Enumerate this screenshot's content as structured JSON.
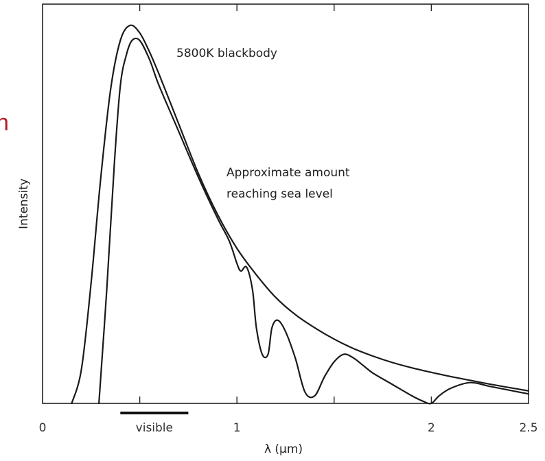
{
  "edge_fragment": "n",
  "chart_data": {
    "type": "line",
    "title": "",
    "xlabel": "λ (μm)",
    "ylabel": "Intensity",
    "xlim": [
      0,
      2.5
    ],
    "ylim": [
      0,
      1
    ],
    "x_ticks": [
      0,
      1,
      2,
      2.5
    ],
    "x_tick_labels": [
      "0",
      "1",
      "2",
      "2.5"
    ],
    "grid": false,
    "annotations": [
      {
        "text": "5800K blackbody",
        "series": "blackbody"
      },
      {
        "text": "Approximate amount",
        "series": "sea_level"
      },
      {
        "text": "reaching sea level",
        "series": "sea_level"
      }
    ],
    "band": {
      "label": "visible",
      "range": [
        0.4,
        0.75
      ]
    },
    "series": [
      {
        "key": "blackbody",
        "color": "#1a1a1a",
        "x": [
          0.15,
          0.2,
          0.25,
          0.3,
          0.35,
          0.4,
          0.45,
          0.5,
          0.55,
          0.6,
          0.7,
          0.8,
          0.9,
          1.0,
          1.1,
          1.2,
          1.3,
          1.4,
          1.5,
          1.6,
          1.7,
          1.8,
          1.9,
          2.0,
          2.1,
          2.2,
          2.3,
          2.4,
          2.5
        ],
        "y": [
          0.0,
          0.09,
          0.32,
          0.6,
          0.83,
          0.96,
          1.0,
          0.98,
          0.93,
          0.87,
          0.74,
          0.61,
          0.5,
          0.41,
          0.34,
          0.28,
          0.235,
          0.2,
          0.17,
          0.145,
          0.125,
          0.108,
          0.094,
          0.082,
          0.071,
          0.061,
          0.051,
          0.042,
          0.033
        ]
      },
      {
        "key": "sea_level",
        "color": "#1a1a1a",
        "x": [
          0.29,
          0.33,
          0.37,
          0.4,
          0.43,
          0.46,
          0.5,
          0.55,
          0.6,
          0.7,
          0.8,
          0.9,
          0.96,
          1.0,
          1.02,
          1.05,
          1.08,
          1.1,
          1.13,
          1.16,
          1.18,
          1.21,
          1.25,
          1.3,
          1.35,
          1.4,
          1.45,
          1.5,
          1.55,
          1.6,
          1.65,
          1.7,
          1.8,
          1.9,
          1.96,
          2.0,
          2.04,
          2.1,
          2.2,
          2.3,
          2.4,
          2.5
        ],
        "y": [
          0.0,
          0.3,
          0.64,
          0.84,
          0.92,
          0.96,
          0.96,
          0.91,
          0.84,
          0.72,
          0.6,
          0.49,
          0.43,
          0.37,
          0.35,
          0.36,
          0.3,
          0.2,
          0.13,
          0.13,
          0.2,
          0.22,
          0.19,
          0.12,
          0.03,
          0.02,
          0.07,
          0.11,
          0.13,
          0.12,
          0.1,
          0.08,
          0.05,
          0.02,
          0.005,
          0.0,
          0.02,
          0.04,
          0.055,
          0.045,
          0.035,
          0.025
        ]
      }
    ]
  }
}
